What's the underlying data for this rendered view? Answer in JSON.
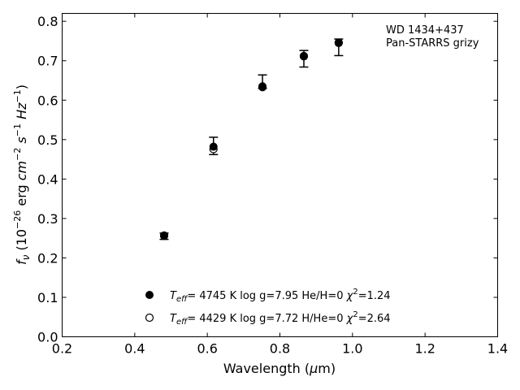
{
  "chart_data": {
    "type": "scatter",
    "xlabel": "Wavelength (μm)",
    "ylabel": "f_ν (10^-26 erg cm^-2 s^-1 Hz^-1)",
    "xlim": [
      0.2,
      1.4
    ],
    "ylim": [
      0.0,
      0.82
    ],
    "xticks": [
      0.2,
      0.4,
      0.6,
      0.8,
      1.0,
      1.2,
      1.4
    ],
    "yticks": [
      0.0,
      0.1,
      0.2,
      0.3,
      0.4,
      0.5,
      0.6,
      0.7,
      0.8
    ],
    "x_tick_labels": [
      "0.2",
      "0.4",
      "0.6",
      "0.8",
      "1.0",
      "1.2",
      "1.4"
    ],
    "y_tick_labels": [
      "0.0",
      "0.1",
      "0.2",
      "0.3",
      "0.4",
      "0.5",
      "0.6",
      "0.7",
      "0.8"
    ],
    "grid": false,
    "annotation": [
      "WD 1434+437",
      "Pan-STARRS grizy"
    ],
    "observed": {
      "x": [
        0.481,
        0.617,
        0.752,
        0.866,
        0.962
      ],
      "y": [
        0.255,
        0.484,
        0.647,
        0.705,
        0.734
      ],
      "yerr": [
        0.008,
        0.022,
        0.017,
        0.021,
        0.021
      ]
    },
    "series": [
      {
        "marker": "filled",
        "label": "T_eff=  4745 K  log g=7.95  He/H=0  χ²=1.24",
        "x": [
          0.481,
          0.617,
          0.752,
          0.866,
          0.962
        ],
        "y": [
          0.257,
          0.482,
          0.635,
          0.711,
          0.745
        ]
      },
      {
        "marker": "open",
        "label": "T_eff=  4429 K  log g=7.72  H/He=0  χ²=2.64",
        "x": [
          0.481,
          0.617,
          0.752,
          0.866,
          0.962
        ],
        "y": [
          0.256,
          0.476,
          0.633,
          0.712,
          0.746
        ]
      }
    ],
    "legend_position": "bottom-center",
    "colors": {
      "markers": "#000000",
      "axes": "#000000",
      "background": "#ffffff"
    }
  }
}
